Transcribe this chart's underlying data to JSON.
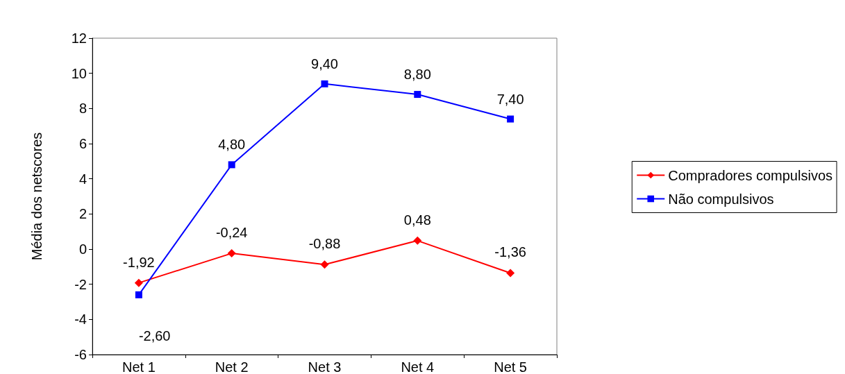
{
  "chart_data": {
    "type": "line",
    "ylabel": "Média dos netscores",
    "categories": [
      "Net 1",
      "Net 2",
      "Net 3",
      "Net 4",
      "Net 5"
    ],
    "series": [
      {
        "name": "Compradores compulsivos",
        "color": "#ff0000",
        "marker": "diamond",
        "values": [
          -1.92,
          -0.24,
          -0.88,
          0.48,
          -1.36
        ],
        "value_labels": [
          "-1,92",
          "-0,24",
          "-0,88",
          "0,48",
          "-1,36"
        ]
      },
      {
        "name": "Não compulsivos",
        "color": "#0000ff",
        "marker": "square",
        "values": [
          -2.6,
          4.8,
          9.4,
          8.8,
          7.4
        ],
        "value_labels": [
          "-2,60",
          "4,80",
          "9,40",
          "8,80",
          "7,40"
        ]
      }
    ],
    "ylim": [
      -6,
      12
    ],
    "yticks": [
      -6,
      -4,
      -2,
      0,
      2,
      4,
      6,
      8,
      10,
      12
    ],
    "grid": false,
    "legend": "right",
    "line_style": "solid"
  }
}
